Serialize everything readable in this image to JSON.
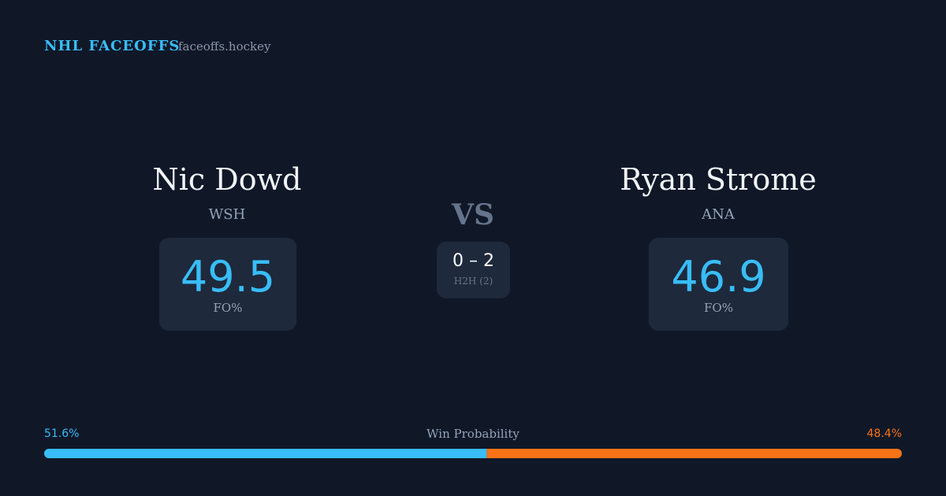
{
  "header": {
    "brand": "NHL FACEOFFS",
    "site": "faceoffs.hockey"
  },
  "players": [
    {
      "name": "Nic Dowd",
      "team": "WSH",
      "fo_pct": 49.5,
      "fo_label": "FO%"
    },
    {
      "name": "Ryan Strome",
      "team": "ANA",
      "fo_pct": 46.9,
      "fo_label": "FO%"
    }
  ],
  "versus": "VS",
  "h2h": {
    "score": "0 – 2",
    "label": "H2H (2)"
  },
  "win_probability": {
    "title": "Win Probability",
    "left": {
      "value": 51.6,
      "label": "51.6%",
      "color": "#38bdf8"
    },
    "right": {
      "value": 48.4,
      "label": "48.4%",
      "color": "#f97316"
    }
  }
}
